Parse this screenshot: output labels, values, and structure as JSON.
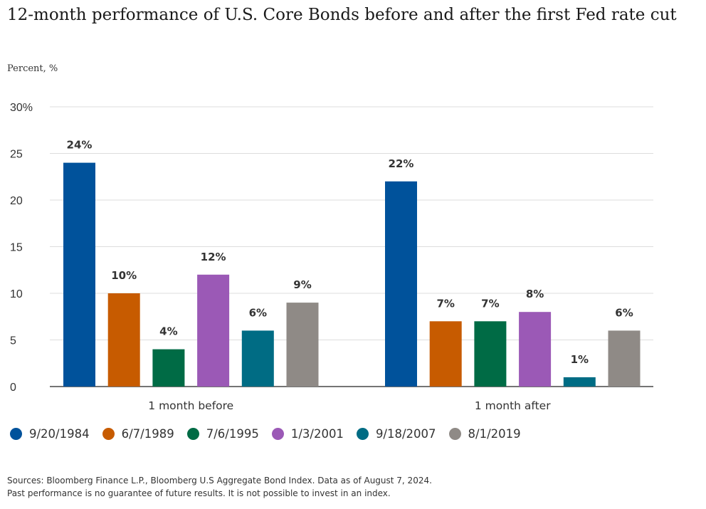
{
  "title": "12-month performance of U.S. Core Bonds before and after the first Fed rate cut",
  "ylabel": "Percent, %",
  "footnote": {
    "line1": "Sources: Bloomberg Finance L.P., Bloomberg U.S Aggregate Bond Index. Data as of August 7, 2024.",
    "line2": "Past performance is no guarantee of future results. It is not possible to invest in an index."
  },
  "chart_data": {
    "type": "bar",
    "title": "12-month performance of U.S. Core Bonds before and after the first Fed rate cut",
    "ylabel": "Percent, %",
    "xlabel": "",
    "ylim": [
      0,
      30
    ],
    "yticks": [
      0,
      5,
      10,
      15,
      20,
      25,
      30
    ],
    "ytick_labels": [
      "0",
      "5",
      "10",
      "15",
      "20",
      "25",
      "30%"
    ],
    "grid": true,
    "legend_position": "bottom",
    "categories": [
      "1 month before",
      "1 month after"
    ],
    "series": [
      {
        "name": "9/20/1984",
        "color": "#00529b",
        "values": [
          24,
          22
        ],
        "labels": [
          "24%",
          "22%"
        ]
      },
      {
        "name": "6/7/1989",
        "color": "#c75b00",
        "values": [
          10,
          7
        ],
        "labels": [
          "10%",
          "7%"
        ]
      },
      {
        "name": "7/6/1995",
        "color": "#006b45",
        "values": [
          4,
          7
        ],
        "labels": [
          "4%",
          "7%"
        ]
      },
      {
        "name": "1/3/2001",
        "color": "#9b59b6",
        "values": [
          12,
          8
        ],
        "labels": [
          "12%",
          "8%"
        ]
      },
      {
        "name": "9/18/2007",
        "color": "#006c84",
        "values": [
          6,
          1
        ],
        "labels": [
          "6%",
          "1%"
        ]
      },
      {
        "name": "8/1/2019",
        "color": "#8f8a86",
        "values": [
          9,
          6
        ],
        "labels": [
          "9%",
          "6%"
        ]
      }
    ]
  }
}
